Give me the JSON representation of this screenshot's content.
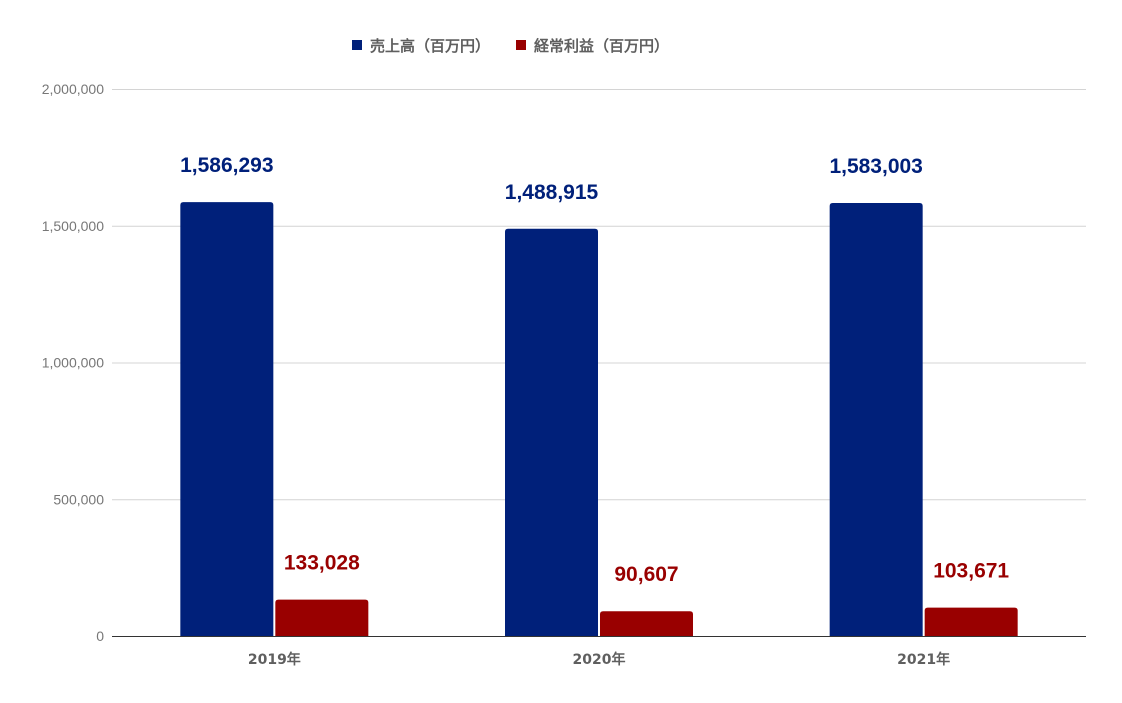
{
  "colors": {
    "series_1": "#00207A",
    "series_2": "#990000",
    "gridline": "#d4d4d4",
    "axis": "#333333"
  },
  "chart_data": {
    "type": "bar",
    "title": "",
    "xlabel": "",
    "ylabel": "",
    "categories": [
      "2019年",
      "2020年",
      "2021年"
    ],
    "series": [
      {
        "name": "売上高（百万円）",
        "values": [
          1586293,
          1488915,
          1583003
        ],
        "labels": [
          "1,586,293",
          "1,488,915",
          "1,583,003"
        ],
        "color": "#00207A"
      },
      {
        "name": "経常利益（百万円）",
        "values": [
          133028,
          90607,
          103671
        ],
        "labels": [
          "133,028",
          "90,607",
          "103,671"
        ],
        "color": "#990000"
      }
    ],
    "ylim": [
      0,
      2000000
    ],
    "yticks": [
      0,
      500000,
      1000000,
      1500000,
      2000000
    ],
    "ytick_labels": [
      "0",
      "500,000",
      "1,000,000",
      "1,500,000",
      "2,000,000"
    ],
    "grid": true,
    "legend_position": "top"
  }
}
